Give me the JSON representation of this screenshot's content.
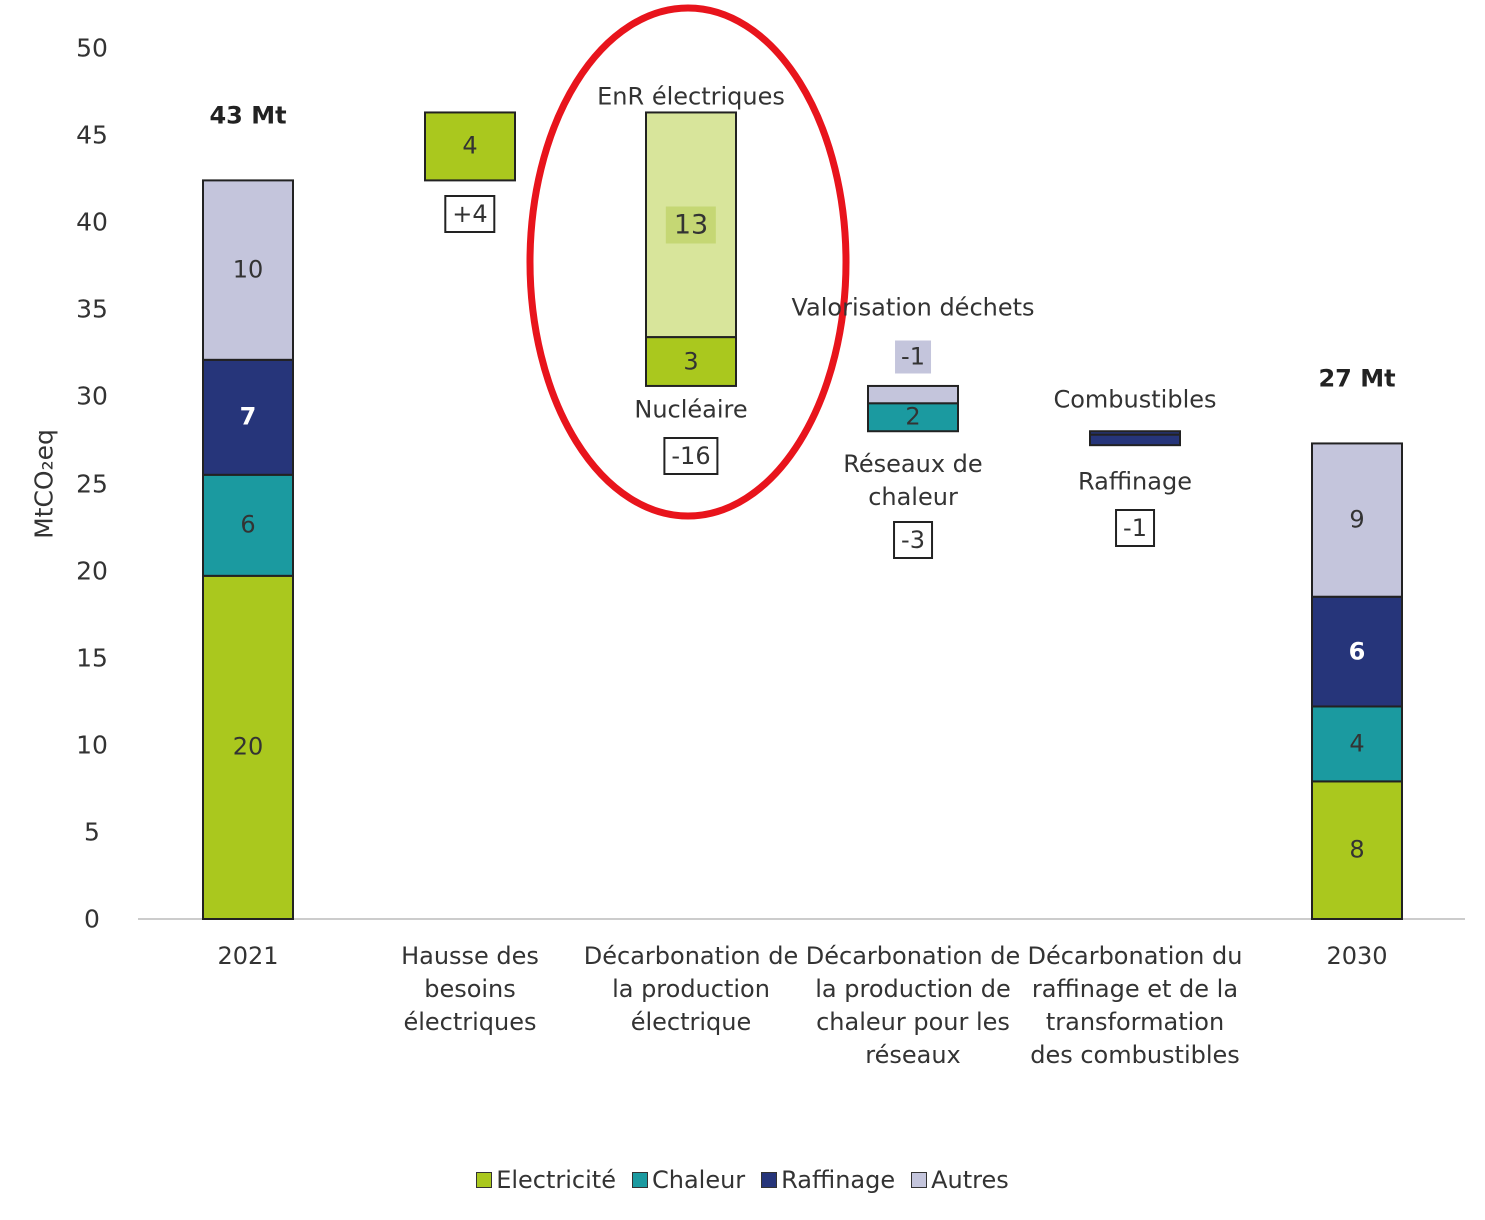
{
  "chart_data": {
    "type": "waterfall",
    "y_label": "MtCO₂eq",
    "ylim": [
      0,
      50
    ],
    "yticks": [
      0,
      5,
      10,
      15,
      20,
      25,
      30,
      35,
      40,
      45,
      50
    ],
    "series": [
      {
        "name": "Electricité",
        "color": "#aac81e"
      },
      {
        "name": "Chaleur",
        "color": "#1b9aa0"
      },
      {
        "name": "Raffinage",
        "color": "#26357a"
      },
      {
        "name": "Autres",
        "color": "#c4c5dc"
      }
    ],
    "steps": [
      {
        "category": "2021",
        "kind": "total",
        "total_label": "43 Mt",
        "segments": [
          {
            "series": "Electricité",
            "value": 19.7,
            "value_label": "20"
          },
          {
            "series": "Chaleur",
            "value": 5.8,
            "value_label": "6"
          },
          {
            "series": "Raffinage",
            "value": 6.6,
            "value_label": "7"
          },
          {
            "series": "Autres",
            "value": 10.3,
            "value_label": "10"
          }
        ]
      },
      {
        "category": "Hausse des besoins électriques",
        "kind": "change",
        "change": 3.9,
        "change_label": "+4",
        "segments": [
          {
            "series": "Electricité",
            "value": 3.9,
            "value_label": "4"
          }
        ]
      },
      {
        "category": "Décarbonation de la production électrique",
        "kind": "change",
        "change": -15.7,
        "change_label": "-16",
        "segments": [
          {
            "series": "Electricité",
            "name": "EnR électriques",
            "color": "#d8e59b",
            "value": -12.9,
            "value_label": "13"
          },
          {
            "series": "Electricité",
            "name": "Nucléaire",
            "value": -2.8,
            "value_label": "3"
          }
        ]
      },
      {
        "category": "Décarbonation de la production de chaleur pour les réseaux",
        "kind": "change",
        "change": -2.6,
        "change_label": "-3",
        "segments": [
          {
            "series": "Autres",
            "name": "Valorisation déchets",
            "value": -1.0,
            "value_label": "-1"
          },
          {
            "series": "Chaleur",
            "name": "Réseaux de chaleur",
            "value": -1.6,
            "value_label": "2"
          }
        ]
      },
      {
        "category": "Décarbonation du raffinage et de la transformation des combustibles",
        "kind": "change",
        "change": -0.8,
        "change_label": "-1",
        "segments": [
          {
            "series": "Raffinage",
            "name": "Combustibles",
            "value": -0.2
          },
          {
            "series": "Raffinage",
            "name": "Raffinage",
            "value": -0.6
          }
        ]
      },
      {
        "category": "2030",
        "kind": "total",
        "total_label": "27 Mt",
        "segments": [
          {
            "series": "Electricité",
            "value": 7.9,
            "value_label": "8"
          },
          {
            "series": "Chaleur",
            "value": 4.3,
            "value_label": "4"
          },
          {
            "series": "Raffinage",
            "value": 6.3,
            "value_label": "6"
          },
          {
            "series": "Autres",
            "value": 8.8,
            "value_label": "9"
          }
        ]
      }
    ]
  }
}
